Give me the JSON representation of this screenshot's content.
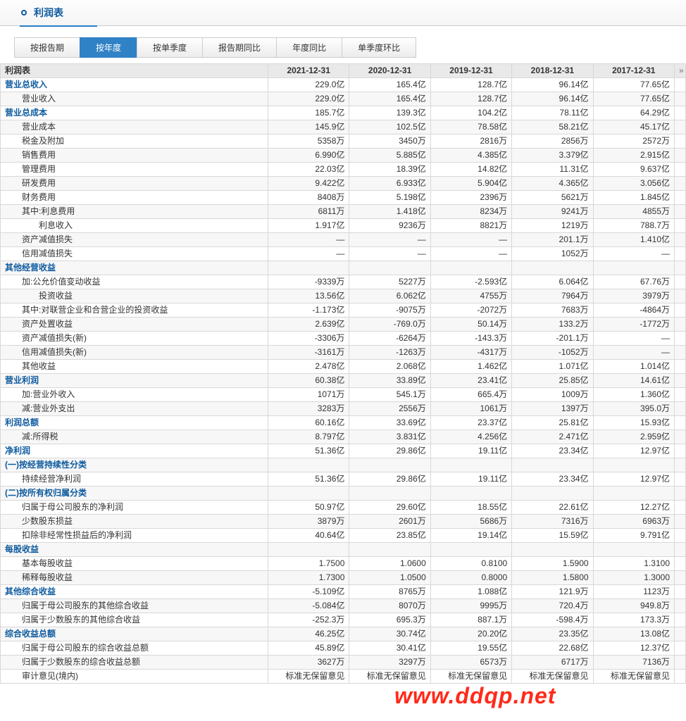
{
  "title": "利润表",
  "tabs": [
    "按报告期",
    "按年度",
    "按单季度",
    "报告期同比",
    "年度同比",
    "单季度环比"
  ],
  "activeTab": 1,
  "tableTitle": "利润表",
  "columns": [
    "2021-12-31",
    "2020-12-31",
    "2019-12-31",
    "2018-12-31",
    "2017-12-31"
  ],
  "arrow": "»",
  "watermark": "www.ddqp.net",
  "rows": [
    {
      "n": "营业总收入",
      "s": 1,
      "v": [
        "229.0亿",
        "165.4亿",
        "128.7亿",
        "96.14亿",
        "77.65亿"
      ]
    },
    {
      "n": "营业收入",
      "i": 2,
      "v": [
        "229.0亿",
        "165.4亿",
        "128.7亿",
        "96.14亿",
        "77.65亿"
      ]
    },
    {
      "n": "营业总成本",
      "s": 1,
      "v": [
        "185.7亿",
        "139.3亿",
        "104.2亿",
        "78.11亿",
        "64.29亿"
      ]
    },
    {
      "n": "营业成本",
      "i": 2,
      "v": [
        "145.9亿",
        "102.5亿",
        "78.58亿",
        "58.21亿",
        "45.17亿"
      ]
    },
    {
      "n": "税金及附加",
      "i": 2,
      "v": [
        "5358万",
        "3450万",
        "2816万",
        "2856万",
        "2572万"
      ]
    },
    {
      "n": "销售费用",
      "i": 2,
      "v": [
        "6.990亿",
        "5.885亿",
        "4.385亿",
        "3.379亿",
        "2.915亿"
      ]
    },
    {
      "n": "管理费用",
      "i": 2,
      "v": [
        "22.03亿",
        "18.39亿",
        "14.82亿",
        "11.31亿",
        "9.637亿"
      ]
    },
    {
      "n": "研发费用",
      "i": 2,
      "v": [
        "9.422亿",
        "6.933亿",
        "5.904亿",
        "4.365亿",
        "3.056亿"
      ]
    },
    {
      "n": "财务费用",
      "i": 2,
      "v": [
        "8408万",
        "5.198亿",
        "2396万",
        "5621万",
        "1.845亿"
      ]
    },
    {
      "n": "其中:利息费用",
      "i": 2,
      "v": [
        "6811万",
        "1.418亿",
        "8234万",
        "9241万",
        "4855万"
      ]
    },
    {
      "n": "利息收入",
      "i": 4,
      "v": [
        "1.917亿",
        "9236万",
        "8821万",
        "1219万",
        "788.7万"
      ]
    },
    {
      "n": "资产减值损失",
      "i": 2,
      "v": [
        "—",
        "—",
        "—",
        "201.1万",
        "1.410亿"
      ]
    },
    {
      "n": "信用减值损失",
      "i": 2,
      "v": [
        "—",
        "—",
        "—",
        "1052万",
        "—"
      ]
    },
    {
      "n": "其他经营收益",
      "s": 1,
      "v": [
        "",
        "",
        "",
        "",
        ""
      ]
    },
    {
      "n": "加:公允价值变动收益",
      "i": 2,
      "v": [
        "-9339万",
        "5227万",
        "-2.593亿",
        "6.064亿",
        "67.76万"
      ]
    },
    {
      "n": "投资收益",
      "i": 4,
      "v": [
        "13.56亿",
        "6.062亿",
        "4755万",
        "7964万",
        "3979万"
      ]
    },
    {
      "n": "其中:对联营企业和合营企业的投资收益",
      "i": 2,
      "v": [
        "-1.173亿",
        "-9075万",
        "-2072万",
        "7683万",
        "-4864万"
      ]
    },
    {
      "n": "资产处置收益",
      "i": 2,
      "v": [
        "2.639亿",
        "-769.0万",
        "50.14万",
        "133.2万",
        "-1772万"
      ]
    },
    {
      "n": "资产减值损失(新)",
      "i": 2,
      "v": [
        "-3306万",
        "-6264万",
        "-143.3万",
        "-201.1万",
        "—"
      ]
    },
    {
      "n": "信用减值损失(新)",
      "i": 2,
      "v": [
        "-3161万",
        "-1263万",
        "-4317万",
        "-1052万",
        "—"
      ]
    },
    {
      "n": "其他收益",
      "i": 2,
      "v": [
        "2.478亿",
        "2.068亿",
        "1.462亿",
        "1.071亿",
        "1.014亿"
      ]
    },
    {
      "n": "营业利润",
      "s": 1,
      "v": [
        "60.38亿",
        "33.89亿",
        "23.41亿",
        "25.85亿",
        "14.61亿"
      ]
    },
    {
      "n": "加:营业外收入",
      "i": 2,
      "v": [
        "1071万",
        "545.1万",
        "665.4万",
        "1009万",
        "1.360亿"
      ]
    },
    {
      "n": "减:营业外支出",
      "i": 2,
      "v": [
        "3283万",
        "2556万",
        "1061万",
        "1397万",
        "395.0万"
      ]
    },
    {
      "n": "利润总额",
      "s": 1,
      "v": [
        "60.16亿",
        "33.69亿",
        "23.37亿",
        "25.81亿",
        "15.93亿"
      ]
    },
    {
      "n": "减:所得税",
      "i": 2,
      "v": [
        "8.797亿",
        "3.831亿",
        "4.256亿",
        "2.471亿",
        "2.959亿"
      ]
    },
    {
      "n": "净利润",
      "s": 1,
      "v": [
        "51.36亿",
        "29.86亿",
        "19.11亿",
        "23.34亿",
        "12.97亿"
      ]
    },
    {
      "n": "(一)按经营持续性分类",
      "s": 1,
      "v": [
        "",
        "",
        "",
        "",
        ""
      ]
    },
    {
      "n": "持续经营净利润",
      "i": 2,
      "v": [
        "51.36亿",
        "29.86亿",
        "19.11亿",
        "23.34亿",
        "12.97亿"
      ]
    },
    {
      "n": "(二)按所有权归属分类",
      "s": 1,
      "v": [
        "",
        "",
        "",
        "",
        ""
      ]
    },
    {
      "n": "归属于母公司股东的净利润",
      "i": 2,
      "v": [
        "50.97亿",
        "29.60亿",
        "18.55亿",
        "22.61亿",
        "12.27亿"
      ]
    },
    {
      "n": "少数股东损益",
      "i": 2,
      "v": [
        "3879万",
        "2601万",
        "5686万",
        "7316万",
        "6963万"
      ]
    },
    {
      "n": "扣除非经常性损益后的净利润",
      "i": 2,
      "v": [
        "40.64亿",
        "23.85亿",
        "19.14亿",
        "15.59亿",
        "9.791亿"
      ]
    },
    {
      "n": "每股收益",
      "s": 1,
      "v": [
        "",
        "",
        "",
        "",
        ""
      ]
    },
    {
      "n": "基本每股收益",
      "i": 2,
      "v": [
        "1.7500",
        "1.0600",
        "0.8100",
        "1.5900",
        "1.3100"
      ]
    },
    {
      "n": "稀释每股收益",
      "i": 2,
      "v": [
        "1.7300",
        "1.0500",
        "0.8000",
        "1.5800",
        "1.3000"
      ]
    },
    {
      "n": "其他综合收益",
      "s": 1,
      "v": [
        "-5.109亿",
        "8765万",
        "1.088亿",
        "121.9万",
        "1123万"
      ]
    },
    {
      "n": "归属于母公司股东的其他综合收益",
      "i": 2,
      "v": [
        "-5.084亿",
        "8070万",
        "9995万",
        "720.4万",
        "949.8万"
      ]
    },
    {
      "n": "归属于少数股东的其他综合收益",
      "i": 2,
      "v": [
        "-252.3万",
        "695.3万",
        "887.1万",
        "-598.4万",
        "173.3万"
      ]
    },
    {
      "n": "综合收益总额",
      "s": 1,
      "v": [
        "46.25亿",
        "30.74亿",
        "20.20亿",
        "23.35亿",
        "13.08亿"
      ]
    },
    {
      "n": "归属于母公司股东的综合收益总额",
      "i": 2,
      "v": [
        "45.89亿",
        "30.41亿",
        "19.55亿",
        "22.68亿",
        "12.37亿"
      ]
    },
    {
      "n": "归属于少数股东的综合收益总额",
      "i": 2,
      "v": [
        "3627万",
        "3297万",
        "6573万",
        "6717万",
        "7136万"
      ]
    },
    {
      "n": "审计意见(境内)",
      "i": 2,
      "v": [
        "标准无保留意见",
        "标准无保留意见",
        "标准无保留意见",
        "标准无保留意见",
        "标准无保留意见"
      ]
    }
  ]
}
